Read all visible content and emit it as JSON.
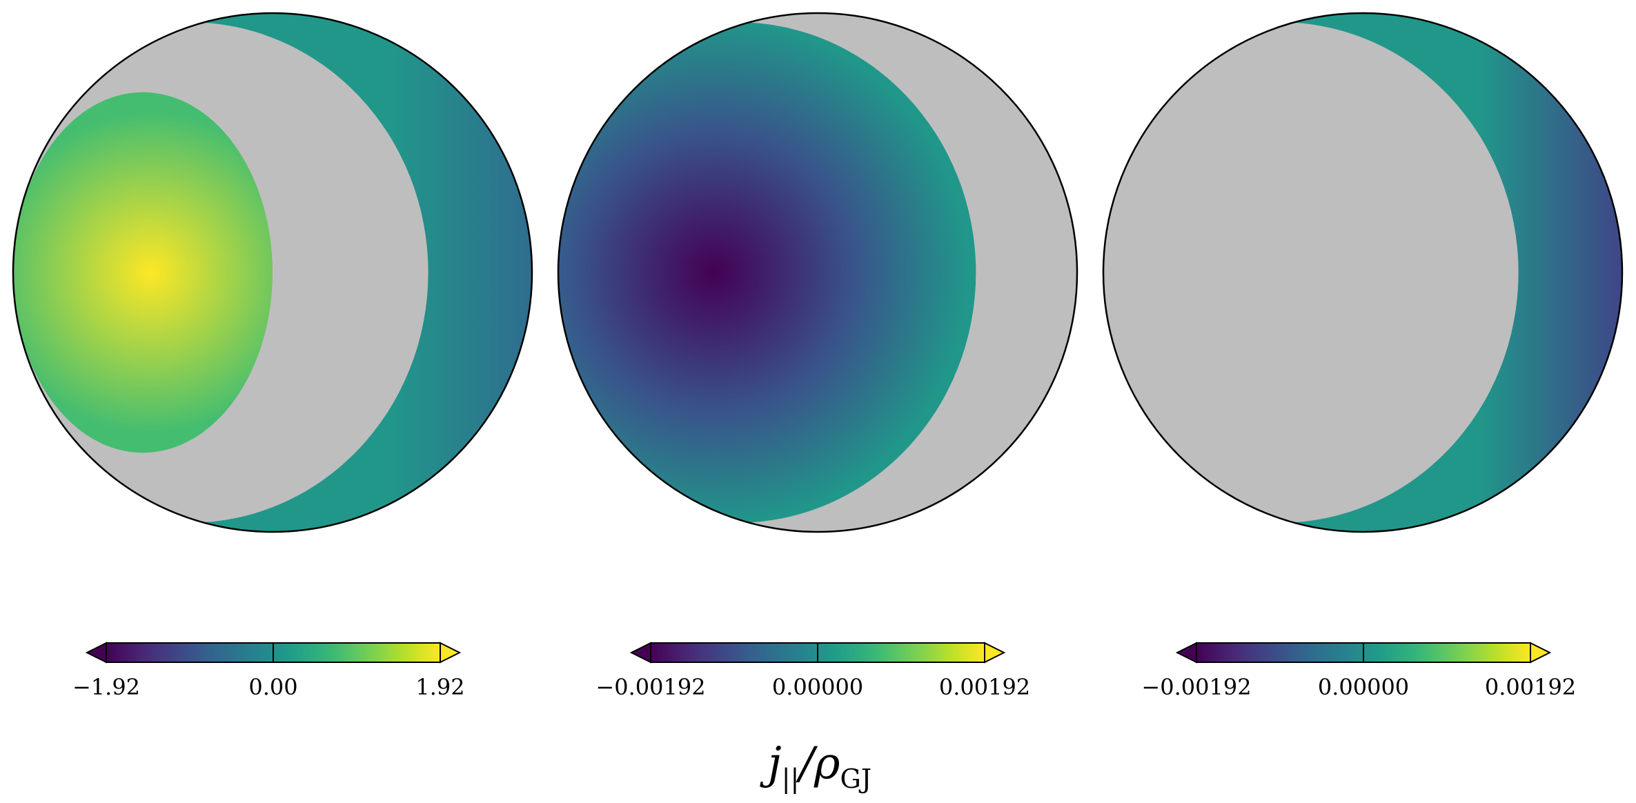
{
  "chart_data": {
    "type": "heatmap",
    "description_source": "three orthographic sphere maps with extended colorbars",
    "colormap": "viridis",
    "masked_color": "#bebebe",
    "colorbar_extend": "both",
    "panels": [
      {
        "id": "left",
        "vmin": -1.92,
        "vmax": 1.92,
        "ticks": [
          {
            "value": -1.92,
            "label": "−1.92"
          },
          {
            "value": 0.0,
            "label": "0.00"
          },
          {
            "value": 1.92,
            "label": "1.92"
          }
        ],
        "regions": [
          {
            "name": "polar_cap",
            "peak_value": 1.92,
            "edge_value": 0.75
          },
          {
            "name": "gap",
            "masked": true
          },
          {
            "name": "outer_band",
            "inner_value": 0.1,
            "outer_value": -0.55
          }
        ]
      },
      {
        "id": "middle",
        "vmin": -0.00192,
        "vmax": 0.00192,
        "ticks": [
          {
            "value": -0.00192,
            "label": "−0.00192"
          },
          {
            "value": 0.0,
            "label": "0.00000"
          },
          {
            "value": 0.00192,
            "label": "0.00192"
          }
        ],
        "regions": [
          {
            "name": "inner_region",
            "peak_value": -0.00192,
            "edge_value": 0.0001
          },
          {
            "name": "gap",
            "masked": true
          }
        ]
      },
      {
        "id": "right",
        "vmin": -0.00192,
        "vmax": 0.00192,
        "ticks": [
          {
            "value": -0.00192,
            "label": "−0.00192"
          },
          {
            "value": 0.0,
            "label": "0.00000"
          },
          {
            "value": 0.00192,
            "label": "0.00192"
          }
        ],
        "regions": [
          {
            "name": "inner_region",
            "masked": true
          },
          {
            "name": "outer_band",
            "inner_value": 0.0001,
            "outer_value": -0.0011
          }
        ]
      }
    ],
    "shared_label": {
      "main": "j",
      "sub": "||",
      "sep": "/ρ",
      "sub2": "GJ"
    }
  }
}
